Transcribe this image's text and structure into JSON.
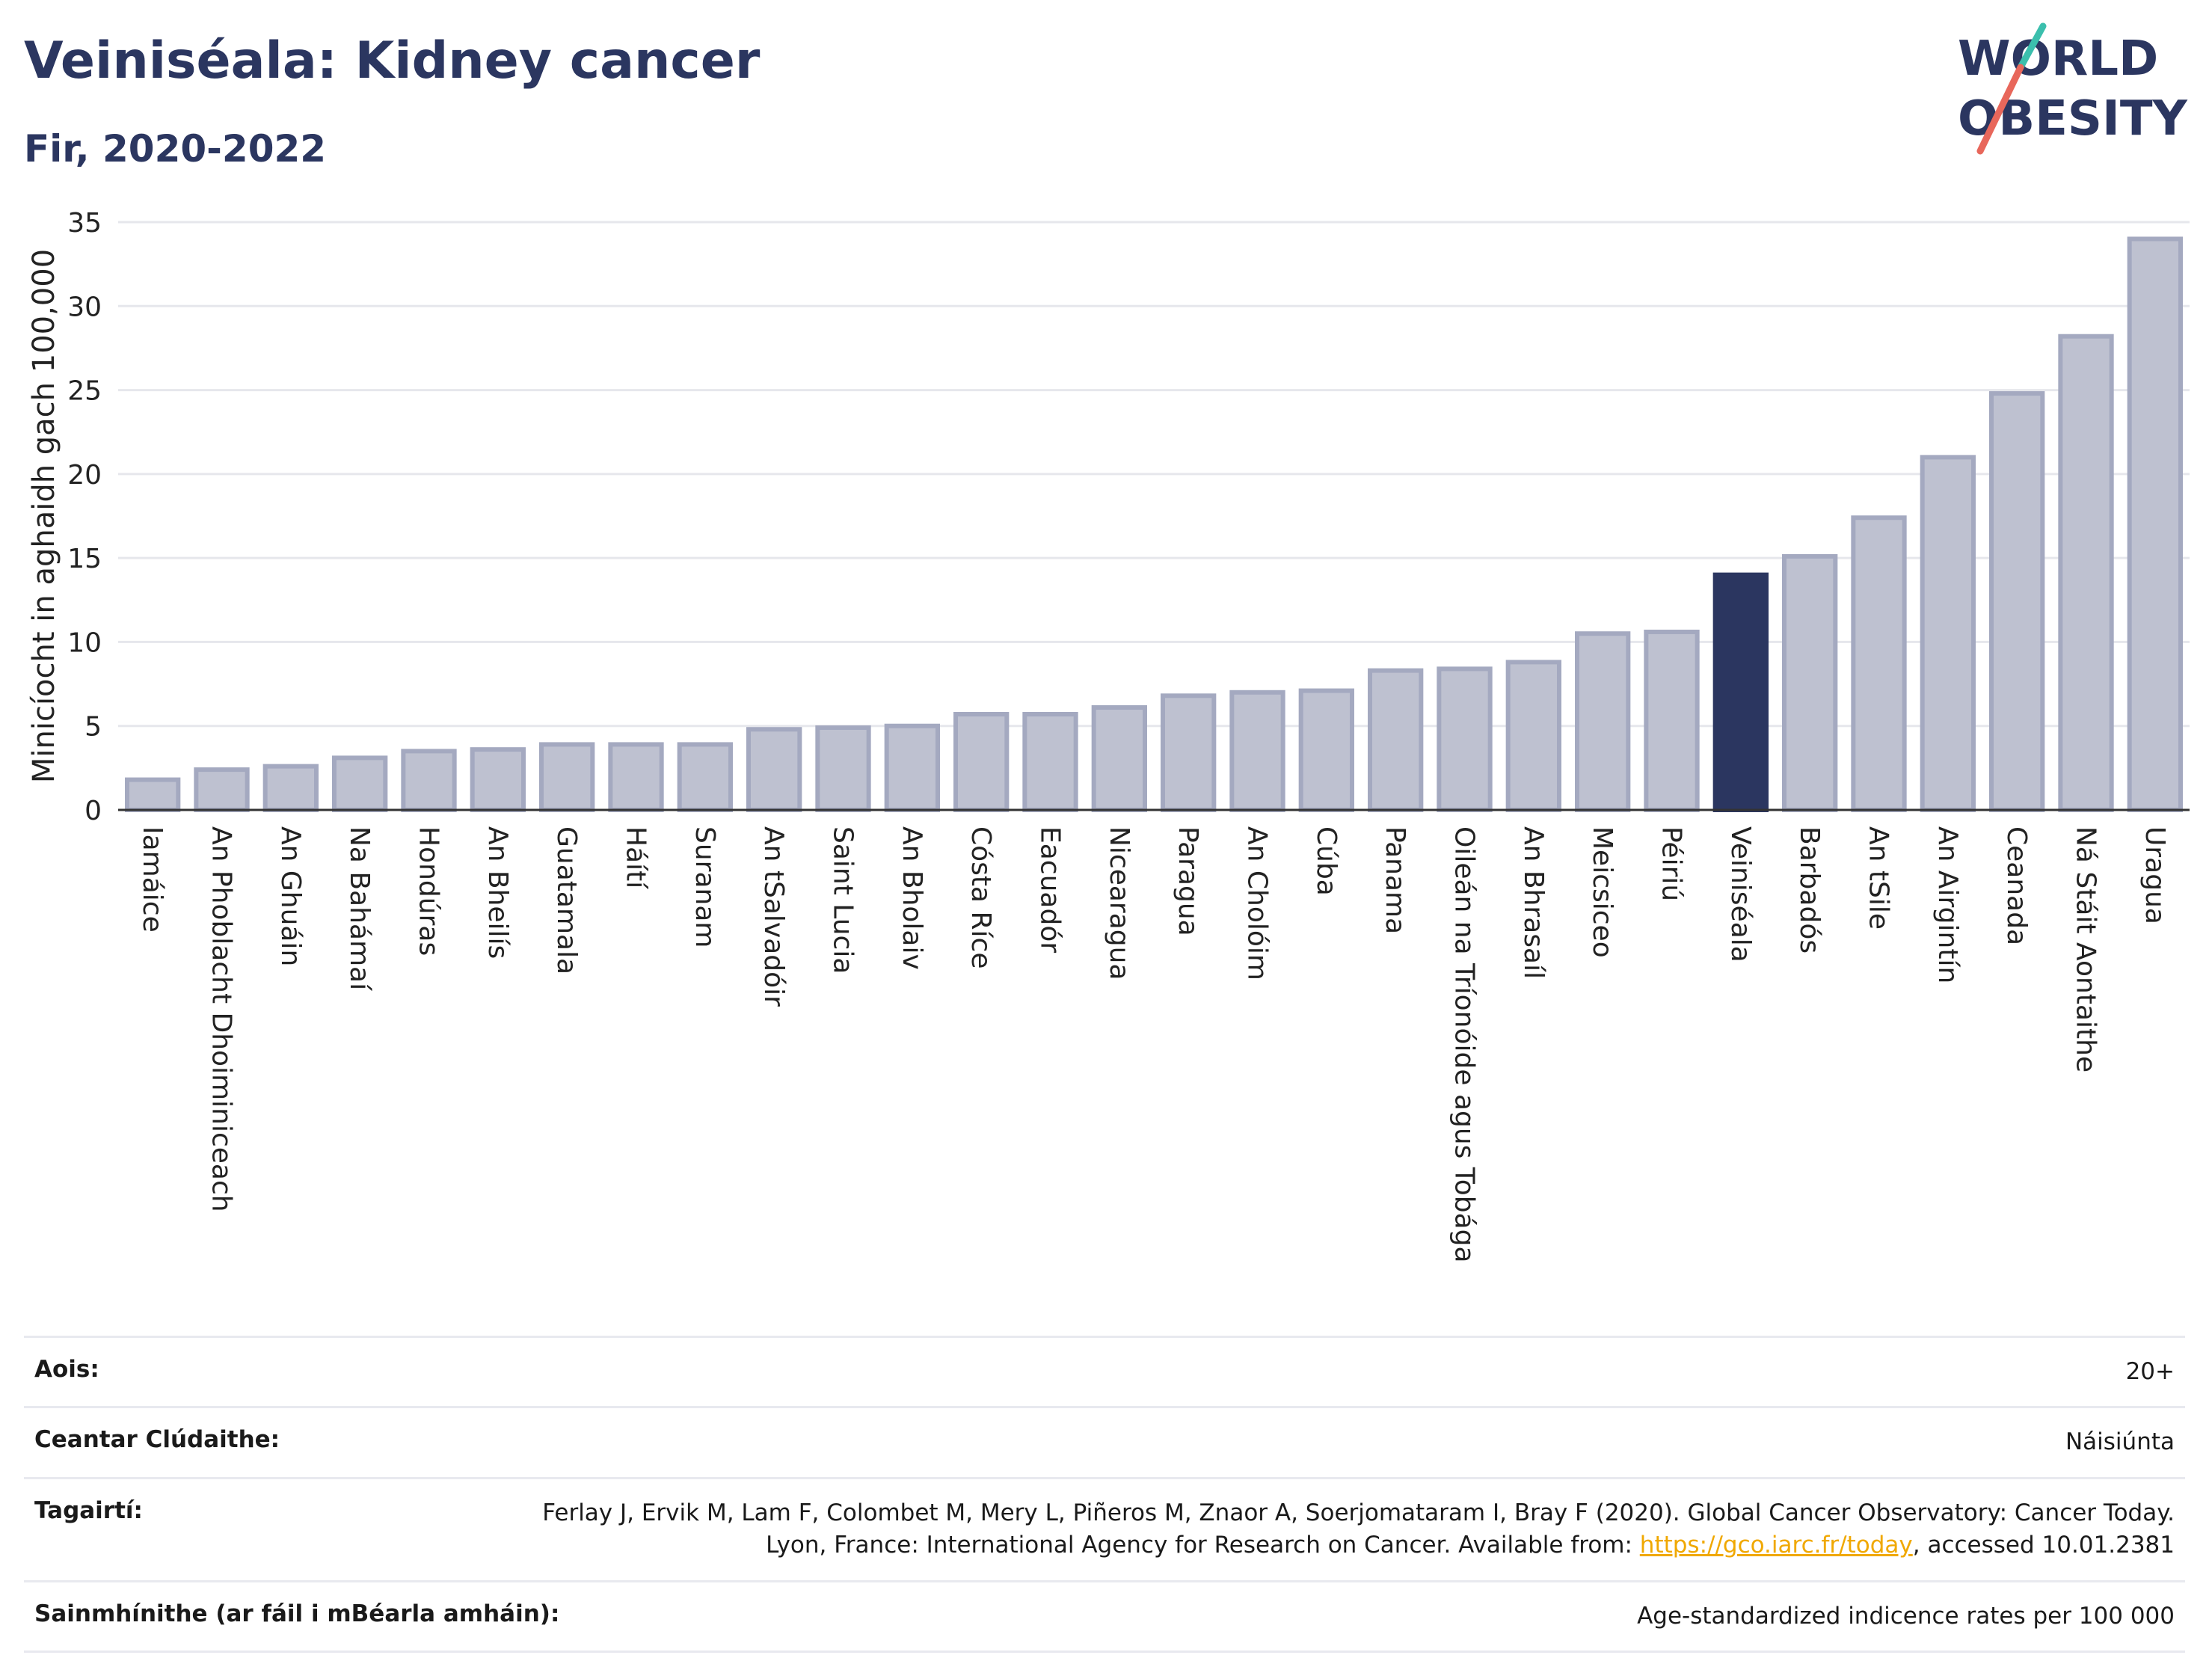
{
  "header": {
    "title": "Veiniséala: Kidney cancer",
    "subtitle": "Fir, 2020-2022"
  },
  "logo": {
    "line1": "WORLD",
    "line2": "OBESITY"
  },
  "colors": {
    "bar": "#bec1d0",
    "bar_stroke": "#a4a9c0",
    "highlight": "#2b3660",
    "title": "#2b3660"
  },
  "chart_data": {
    "type": "bar",
    "ylabel": "Minicíocht in aghaidh gach 100,000",
    "ylim": [
      0,
      35
    ],
    "yticks": [
      0,
      5,
      10,
      15,
      20,
      25,
      30,
      35
    ],
    "grid": true,
    "highlight": "Veiniséala",
    "categories": [
      "Iamáice",
      "An Phoblacht Dhoiminiceach",
      "An Ghuáin",
      "Na Bahámaí",
      "Hondúras",
      "An Bheilís",
      "Guatamala",
      "Háítí",
      "Suranam",
      "An tSalvadóir",
      "Saint Lucia",
      "An Bholaiv",
      "Cósta Ríce",
      "Eacuadór",
      "Nicearagua",
      "Paragua",
      "An Cholóim",
      "Cúba",
      "Panama",
      "Oileán na Tríonóide agus Tobága",
      "An Bhrasaíl",
      "Meicsiceo",
      "Péiriú",
      "Veiniséala",
      "Barbadós",
      "An tSile",
      "An Airgintín",
      "Ceanada",
      "Ná Stáit Aontaithe",
      "Uragua"
    ],
    "values": [
      1.8,
      2.4,
      2.6,
      3.1,
      3.5,
      3.6,
      3.9,
      3.9,
      3.9,
      4.8,
      4.9,
      5.0,
      5.7,
      5.7,
      6.1,
      6.8,
      7.0,
      7.1,
      8.3,
      8.4,
      8.8,
      10.5,
      10.6,
      14.0,
      15.1,
      17.4,
      21.0,
      24.8,
      28.2,
      34.0
    ]
  },
  "info": {
    "rows": [
      {
        "label": "Aois:",
        "value": "20+"
      },
      {
        "label": "Ceantar Clúdaithe:",
        "value": "Náisiúnta"
      },
      {
        "label": "Tagairtí:",
        "value_pre": "Ferlay J, Ervik M, Lam F, Colombet M, Mery L, Piñeros M, Znaor A, Soerjomataram I, Bray F (2020). Global Cancer Observatory: Cancer Today. Lyon, France: International Agency for Research on Cancer. Available from: ",
        "link": "https://gco.iarc.fr/today",
        "value_post": ", accessed 10.01.2381"
      },
      {
        "label": "Sainmhínithe (ar fáil i mBéarla amháin):",
        "value": "Age-standardized indicence rates per 100 000"
      }
    ]
  }
}
